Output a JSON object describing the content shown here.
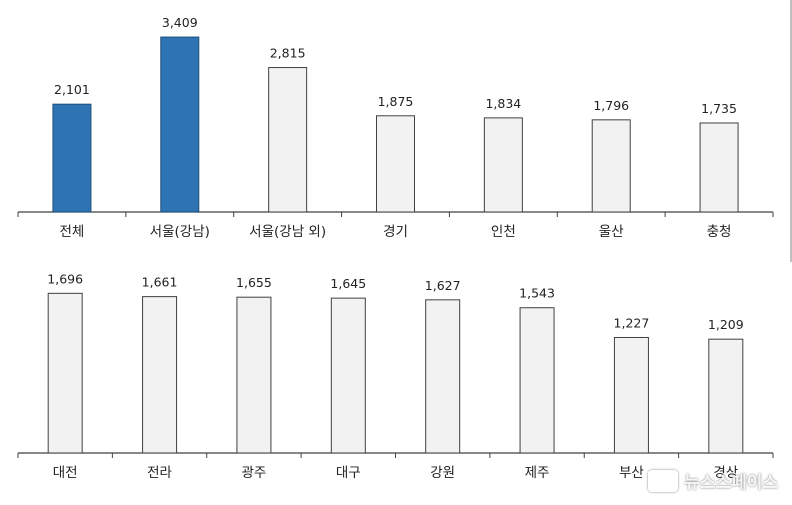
{
  "colors": {
    "highlight": "#2e74b5",
    "default": "#f2f2f2",
    "outline": "#404040",
    "axis": "#404040"
  },
  "watermark": {
    "text": "뉴스스페이스"
  },
  "chart_data": [
    {
      "type": "bar",
      "categories": [
        "전체",
        "서울(강남)",
        "서울(강남 외)",
        "경기",
        "인천",
        "울산",
        "충청"
      ],
      "values": [
        2101,
        3409,
        2815,
        1875,
        1834,
        1796,
        1735
      ],
      "highlighted": [
        0,
        1
      ],
      "ylim": [
        0,
        3800
      ]
    },
    {
      "type": "bar",
      "categories": [
        "대전",
        "전라",
        "광주",
        "대구",
        "강원",
        "제주",
        "부산",
        "경상"
      ],
      "values": [
        1696,
        1661,
        1655,
        1645,
        1627,
        1543,
        1227,
        1209
      ],
      "highlighted": [],
      "ylim": [
        0,
        2050
      ]
    }
  ]
}
